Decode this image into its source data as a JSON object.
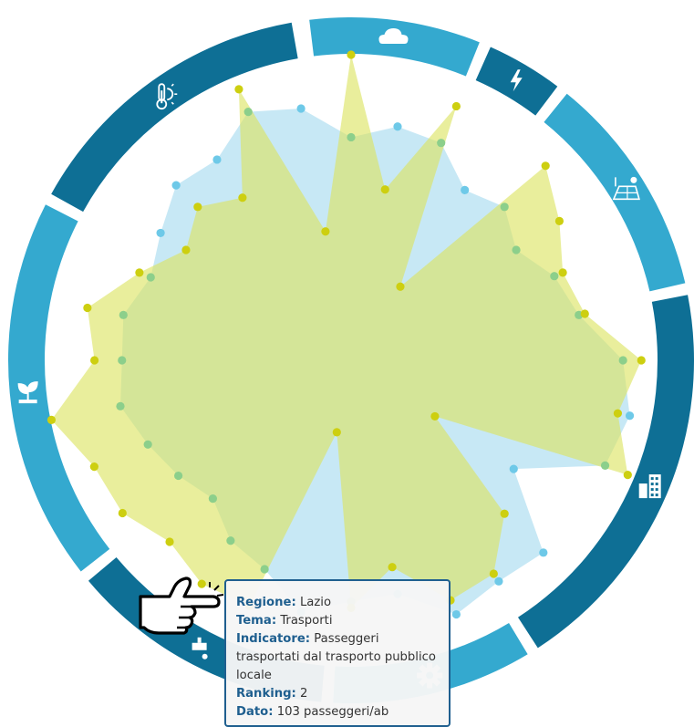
{
  "colors": {
    "ring_dark": "#0e6f95",
    "ring_light": "#34a9cf",
    "series_blue": "#9ed8ee",
    "series_yellow": "#dbe35f",
    "point_blue": "#6ec9e8",
    "point_yellow": "#cdcf10",
    "point_green": "#8ccf8b",
    "tooltip_key": "#1f5f8f"
  },
  "ring": {
    "segments": [
      {
        "icon": "cloud-icon",
        "tone": "light"
      },
      {
        "icon": "lightning-icon",
        "tone": "dark"
      },
      {
        "icon": "solar-wind-icon",
        "tone": "light"
      },
      {
        "icon": "buildings-icon",
        "tone": "dark"
      },
      {
        "icon": "gear-icon",
        "tone": "light"
      },
      {
        "icon": "water-tap-icon",
        "tone": "dark"
      },
      {
        "icon": "plant-icon",
        "tone": "light"
      },
      {
        "icon": "thermometer-sun-icon",
        "tone": "dark"
      }
    ]
  },
  "chart_data": {
    "type": "radar",
    "axes_count": 32,
    "scale": [
      0,
      1
    ],
    "series": [
      {
        "color": "blue",
        "values": [
          0.73,
          0.78,
          0.77,
          0.67,
          0.71,
          0.65,
          0.72,
          0.76,
          0.89,
          0.93,
          0.9,
          0.64,
          0.89,
          0.87,
          0.9,
          0.78,
          0.79,
          0.84,
          0.74,
          0.71,
          0.64,
          0.68,
          0.72,
          0.77,
          0.75,
          0.76,
          0.71,
          0.75,
          0.81,
          0.79,
          0.88,
          0.84
        ]
      },
      {
        "color": "yellow",
        "values": [
          1.0,
          0.57,
          0.9,
          0.29,
          0.9,
          0.82,
          0.75,
          0.78,
          0.95,
          0.89,
          0.98,
          0.33,
          0.71,
          0.84,
          0.85,
          0.69,
          0.81,
          0.24,
          0.87,
          0.88,
          0.84,
          0.9,
          0.91,
          1.0,
          0.84,
          0.88,
          0.75,
          0.65,
          0.71,
          0.64,
          0.96,
          0.43
        ]
      }
    ]
  },
  "tooltip": {
    "regione_label": "Regione:",
    "regione": "Lazio",
    "tema_label": "Tema:",
    "tema": "Trasporti",
    "indicatore_label": "Indicatore:",
    "indicatore": "Passeggeri trasportati dal trasporto pubblico locale",
    "ranking_label": "Ranking:",
    "ranking": "2",
    "dato_label": "Dato:",
    "dato": "103 passeggeri/ab"
  }
}
